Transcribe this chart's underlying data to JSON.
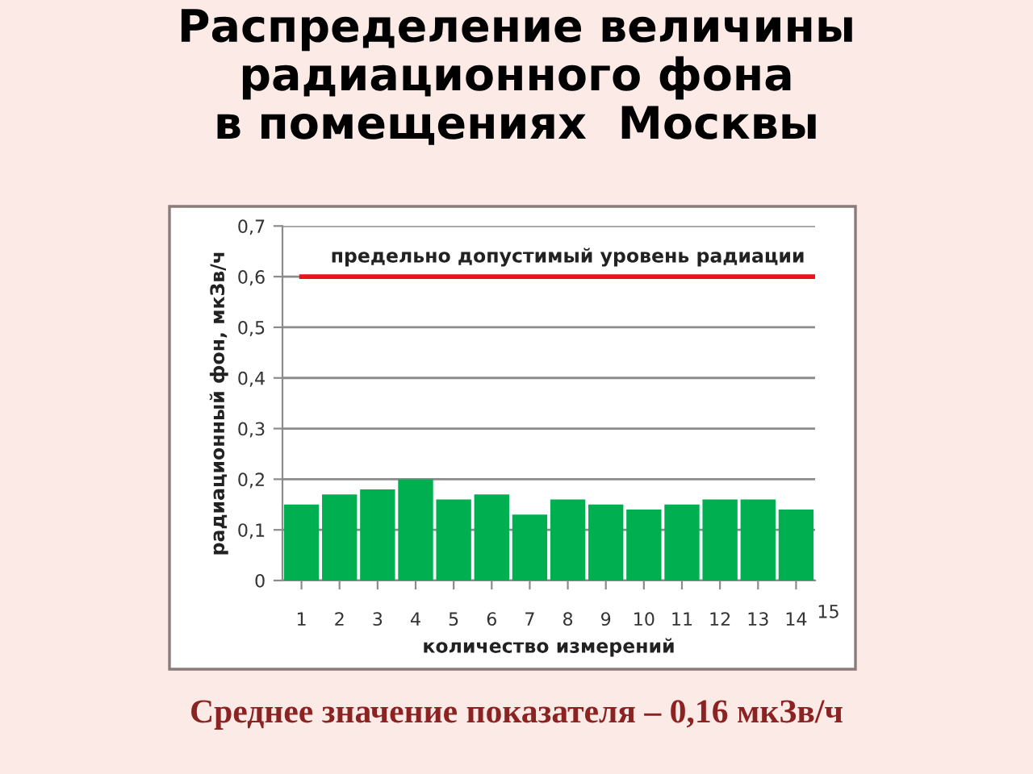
{
  "chart_data": {
    "type": "bar",
    "title": "Распределение величины\nрадиационного фона\nв помещениях  Москвы",
    "xlabel": "количество измерений",
    "ylabel": "радиационный фон, мкЗв/ч",
    "categories": [
      "1",
      "2",
      "3",
      "4",
      "5",
      "6",
      "7",
      "8",
      "9",
      "10",
      "11",
      "12",
      "13",
      "14"
    ],
    "values": [
      0.15,
      0.17,
      0.18,
      0.2,
      0.16,
      0.17,
      0.13,
      0.16,
      0.15,
      0.14,
      0.15,
      0.16,
      0.16,
      0.14
    ],
    "color": "#00b050",
    "ylim": [
      0,
      0.7
    ],
    "yticks": [
      0,
      {
        "value": 0.1,
        "label": "0,1"
      },
      {
        "value": 0.2,
        "label": "0,2"
      },
      {
        "value": 0.3,
        "label": "0,3"
      },
      {
        "value": 0.4,
        "label": "0,4"
      },
      {
        "value": 0.5,
        "label": "0,5"
      },
      {
        "value": 0.6,
        "label": "0,6"
      },
      {
        "value": 0.7,
        "label": "0,7"
      }
    ],
    "grid": "y",
    "ref_lines": [
      {
        "axis": "y",
        "value": 0.6,
        "label": "предельно допустимый уровень радиации",
        "color": "#e8141c"
      }
    ],
    "annotations": [
      "15",
      "Среднее значение показателя – 0,16 мкЗв/ч"
    ]
  }
}
